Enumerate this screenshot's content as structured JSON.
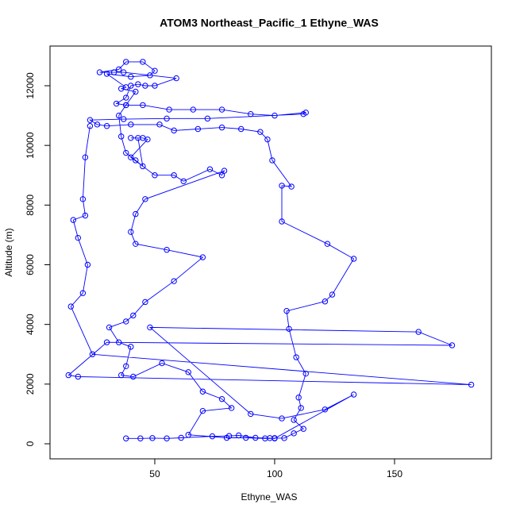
{
  "chart_data": {
    "type": "line",
    "title": "ATOM3 Northeast_Pacific_1 Ethyne_WAS",
    "x_label": "Ethyne_WAS",
    "y_label": "Altitude (m)",
    "x": [
      38,
      44,
      49,
      55,
      61,
      74,
      81,
      85,
      92,
      98,
      100,
      104,
      108,
      112,
      108,
      111,
      110,
      113,
      109,
      106,
      105,
      121,
      124,
      133,
      122,
      103,
      103,
      107,
      99,
      97,
      94,
      86,
      78,
      68,
      58,
      52,
      40,
      30,
      26,
      23,
      37,
      55,
      72,
      112,
      113,
      100,
      90,
      78,
      66,
      56,
      45,
      38,
      34,
      38,
      40,
      43,
      46,
      50,
      59,
      37,
      33,
      27,
      35,
      38,
      45,
      50,
      48,
      40,
      30,
      38,
      36,
      42,
      38,
      35,
      36,
      38,
      42,
      45,
      43,
      40,
      45,
      47,
      40,
      50,
      58,
      62,
      73,
      78,
      79,
      46,
      42,
      40,
      42,
      55,
      70,
      58,
      46,
      41,
      38,
      31,
      35,
      40,
      38,
      36,
      41,
      53,
      64,
      70,
      78,
      82,
      70,
      64,
      80,
      88,
      96,
      100,
      133,
      121,
      103,
      90,
      48,
      160,
      174,
      30,
      14,
      18,
      182,
      24,
      15,
      20,
      22,
      18,
      16,
      21,
      20,
      21,
      23
    ],
    "series": [
      {
        "color": "#0000ff",
        "values": [
          180,
          180,
          190,
          180,
          200,
          250,
          260,
          280,
          200,
          190,
          190,
          190,
          350,
          500,
          800,
          1200,
          1550,
          2350,
          2900,
          3850,
          4450,
          4770,
          5000,
          6200,
          6700,
          7450,
          8650,
          8620,
          9500,
          10200,
          10450,
          10550,
          10600,
          10550,
          10500,
          10700,
          10700,
          10650,
          10700,
          10850,
          10880,
          10900,
          10900,
          11050,
          11100,
          11000,
          11050,
          11200,
          11200,
          11200,
          11350,
          11350,
          11400,
          11600,
          12000,
          12050,
          12000,
          12000,
          12250,
          12450,
          12450,
          12450,
          12550,
          12800,
          12800,
          12500,
          12350,
          12300,
          12400,
          11950,
          11900,
          11800,
          11350,
          11000,
          10300,
          9750,
          9500,
          9300,
          10250,
          10250,
          10250,
          10200,
          9600,
          9000,
          9000,
          8800,
          9200,
          9000,
          9150,
          8200,
          7700,
          7100,
          6700,
          6500,
          6250,
          5450,
          4750,
          4300,
          4100,
          3900,
          3400,
          3250,
          2600,
          2300,
          2250,
          2700,
          2400,
          1750,
          1500,
          1200,
          1100,
          300,
          200,
          200,
          180,
          180,
          1650,
          1150,
          850,
          1000,
          3900,
          3750,
          3300,
          3400,
          2300,
          2250,
          1980,
          3000,
          4600,
          5050,
          6000,
          6900,
          7500,
          7650,
          8200,
          9600,
          10650
        ]
      }
    ],
    "xlim": [
      6.3,
      190.4
    ],
    "xticks": [
      50,
      100,
      150
    ],
    "ylim": [
      -505,
      13330
    ],
    "yticks": [
      0,
      2000,
      4000,
      6000,
      8000,
      10000,
      12000
    ],
    "marker": "open-circle"
  }
}
